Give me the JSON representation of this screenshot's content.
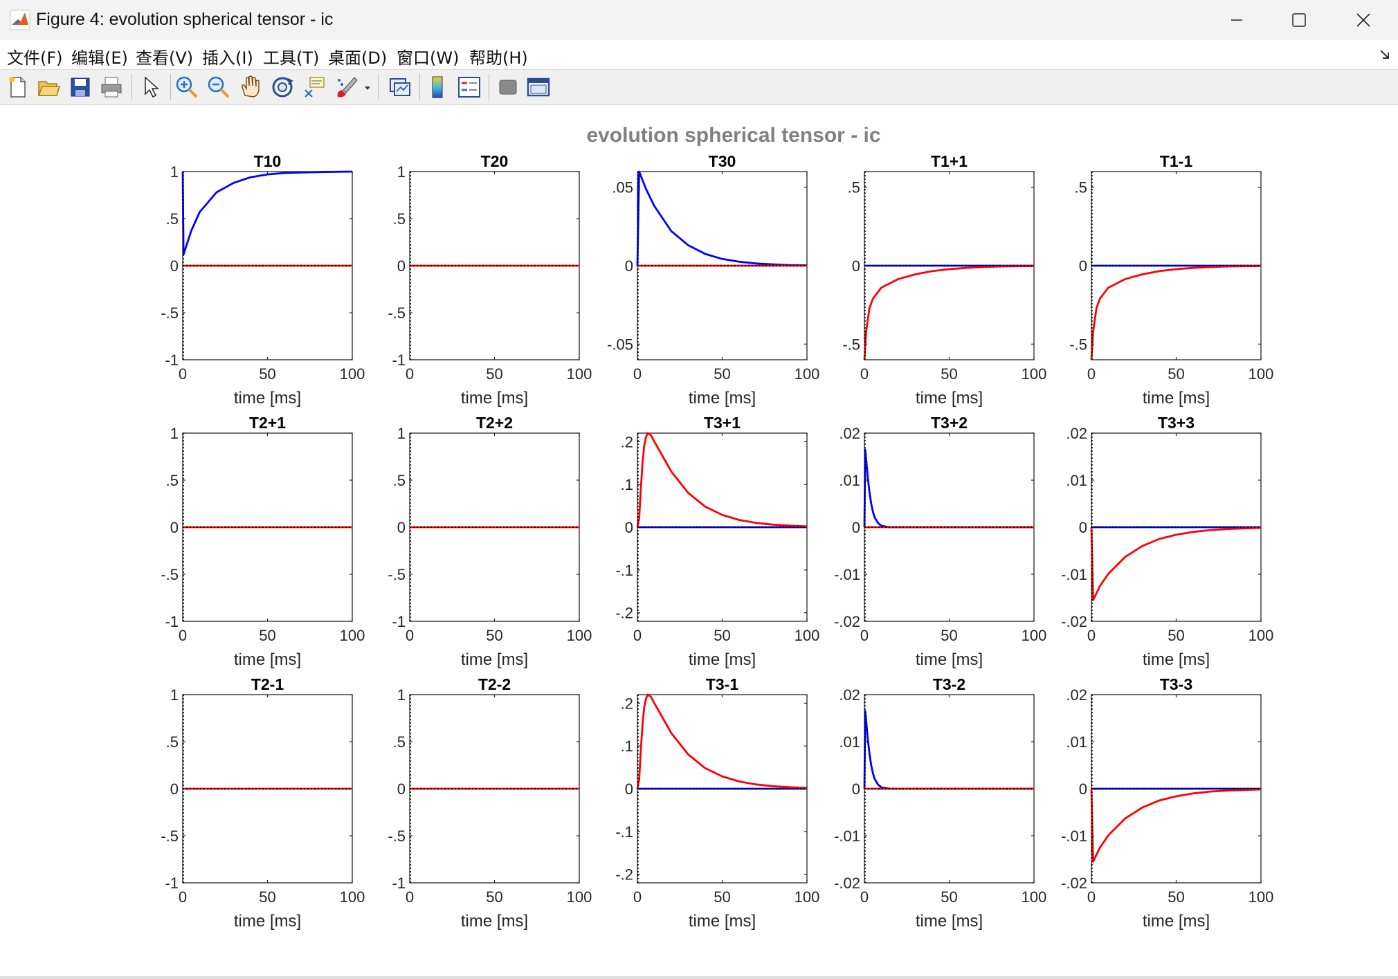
{
  "window": {
    "title": "Figure 4: evolution spherical tensor - ic"
  },
  "menu": [
    "文件(F)",
    "编辑(E)",
    "查看(V)",
    "插入(I)",
    "工具(T)",
    "桌面(D)",
    "窗口(W)",
    "帮助(H)"
  ],
  "toolbar": [
    "new-figure-icon",
    "open-file-icon",
    "save-icon",
    "print-icon",
    "select-arrow-icon",
    "zoom-in-icon",
    "zoom-out-icon",
    "pan-hand-icon",
    "rotate-3d-icon",
    "data-cursor-icon",
    "brush-icon",
    "brush-dropdown-icon",
    "link-plot-icon",
    "colorbar-icon",
    "legend-icon",
    "hide-plot-tools-icon",
    "show-plot-tools-icon"
  ],
  "colors": {
    "blue": "#0000ff",
    "red": "#ff0000",
    "black": "#000000",
    "supertitle": "#808080"
  },
  "chart_data": {
    "type": "line",
    "title": "evolution spherical tensor - ic",
    "layout": "3x5 subplots",
    "xlabel": "time [ms]",
    "xlim": [
      0,
      100
    ],
    "xticks": [
      0,
      50,
      100
    ],
    "note_lines": "blue solid, red solid, black dotted baseline",
    "subplots": [
      {
        "title": "T10",
        "ylim": [
          -1,
          1
        ],
        "yticks": [
          -1,
          -0.5,
          0,
          0.5,
          1
        ],
        "series": [
          {
            "color": "blue",
            "x": [
              0,
              0.5,
              5,
              10,
              20,
              30,
              40,
              50,
              60,
              70,
              80,
              90,
              100
            ],
            "y": [
              1,
              0.12,
              0.37,
              0.57,
              0.78,
              0.88,
              0.94,
              0.97,
              0.985,
              0.99,
              0.995,
              0.998,
              1.0
            ]
          },
          {
            "color": "red",
            "x": [
              0,
              100
            ],
            "y": [
              0,
              0
            ]
          },
          {
            "color": "black",
            "dotted": true,
            "x": [
              0,
              100
            ],
            "y": [
              0,
              0
            ]
          }
        ]
      },
      {
        "title": "T20",
        "ylim": [
          -1,
          1
        ],
        "yticks": [
          -1,
          -0.5,
          0,
          0.5,
          1
        ],
        "series": [
          {
            "color": "red",
            "x": [
              0,
              100
            ],
            "y": [
              0,
              0
            ]
          },
          {
            "color": "black",
            "dotted": true,
            "x": [
              0,
              100
            ],
            "y": [
              0,
              0
            ]
          }
        ]
      },
      {
        "title": "T30",
        "ylim": [
          -0.06,
          0.06
        ],
        "yticks": [
          -0.05,
          0,
          0.05
        ],
        "series": [
          {
            "color": "blue",
            "x": [
              0,
              1,
              5,
              10,
              20,
              30,
              40,
              50,
              60,
              70,
              80,
              90,
              100
            ],
            "y": [
              0,
              0.06,
              0.049,
              0.038,
              0.022,
              0.013,
              0.0075,
              0.0043,
              0.0025,
              0.0014,
              0.0008,
              0.0004,
              0.0002
            ]
          },
          {
            "color": "red",
            "x": [
              0,
              100
            ],
            "y": [
              0,
              0
            ]
          },
          {
            "color": "black",
            "dotted": true,
            "x": [
              0,
              100
            ],
            "y": [
              0,
              0
            ]
          }
        ]
      },
      {
        "title": "T1+1",
        "ylim": [
          -0.6,
          0.6
        ],
        "yticks": [
          -0.5,
          0,
          0.5
        ],
        "series": [
          {
            "color": "blue",
            "x": [
              0,
              100
            ],
            "y": [
              0,
              0
            ]
          },
          {
            "color": "red",
            "x": [
              0,
              1,
              3,
              5,
              10,
              20,
              30,
              40,
              50,
              60,
              70,
              80,
              90,
              100
            ],
            "y": [
              -0.6,
              -0.42,
              -0.27,
              -0.21,
              -0.14,
              -0.085,
              -0.055,
              -0.035,
              -0.022,
              -0.014,
              -0.009,
              -0.005,
              -0.003,
              -0.002
            ]
          },
          {
            "color": "black",
            "dotted": true,
            "x": [
              0,
              100
            ],
            "y": [
              0,
              0
            ]
          }
        ]
      },
      {
        "title": "T1-1",
        "ylim": [
          -0.6,
          0.6
        ],
        "yticks": [
          -0.5,
          0,
          0.5
        ],
        "series": [
          {
            "color": "blue",
            "x": [
              0,
              100
            ],
            "y": [
              0,
              0
            ]
          },
          {
            "color": "red",
            "x": [
              0,
              1,
              3,
              5,
              10,
              20,
              30,
              40,
              50,
              60,
              70,
              80,
              90,
              100
            ],
            "y": [
              -0.6,
              -0.42,
              -0.27,
              -0.21,
              -0.14,
              -0.085,
              -0.055,
              -0.035,
              -0.022,
              -0.014,
              -0.009,
              -0.005,
              -0.003,
              -0.002
            ]
          },
          {
            "color": "black",
            "dotted": true,
            "x": [
              0,
              100
            ],
            "y": [
              0,
              0
            ]
          }
        ]
      },
      {
        "title": "T2+1",
        "ylim": [
          -1,
          1
        ],
        "yticks": [
          -1,
          -0.5,
          0,
          0.5,
          1
        ],
        "series": [
          {
            "color": "red",
            "x": [
              0,
              100
            ],
            "y": [
              0,
              0
            ]
          },
          {
            "color": "black",
            "dotted": true,
            "x": [
              0,
              100
            ],
            "y": [
              0,
              0
            ]
          }
        ]
      },
      {
        "title": "T2+2",
        "ylim": [
          -1,
          1
        ],
        "yticks": [
          -1,
          -0.5,
          0,
          0.5,
          1
        ],
        "series": [
          {
            "color": "red",
            "x": [
              0,
              100
            ],
            "y": [
              0,
              0
            ]
          },
          {
            "color": "black",
            "dotted": true,
            "x": [
              0,
              100
            ],
            "y": [
              0,
              0
            ]
          }
        ]
      },
      {
        "title": "T3+1",
        "ylim": [
          -0.22,
          0.22
        ],
        "yticks": [
          -0.2,
          -0.1,
          0,
          0.1,
          0.2
        ],
        "series": [
          {
            "color": "blue",
            "x": [
              0,
              100
            ],
            "y": [
              0,
              0
            ]
          },
          {
            "color": "red",
            "x": [
              0,
              1,
              2,
              3,
              4,
              5,
              6,
              8,
              10,
              15,
              20,
              30,
              40,
              50,
              60,
              70,
              80,
              90,
              100
            ],
            "y": [
              0,
              0.02,
              0.09,
              0.15,
              0.19,
              0.21,
              0.22,
              0.215,
              0.2,
              0.165,
              0.13,
              0.08,
              0.048,
              0.029,
              0.017,
              0.01,
              0.006,
              0.0035,
              0.002
            ]
          },
          {
            "color": "black",
            "dotted": true,
            "x": [
              0,
              100
            ],
            "y": [
              0,
              0
            ]
          }
        ]
      },
      {
        "title": "T3+2",
        "ylim": [
          -0.02,
          0.02
        ],
        "yticks": [
          -0.02,
          -0.01,
          0,
          0.01,
          0.02
        ],
        "series": [
          {
            "color": "blue",
            "x": [
              0,
              0.5,
              1,
              2,
              3,
              4,
              5,
              6,
              8,
              10,
              15,
              100
            ],
            "y": [
              0,
              0.0165,
              0.0145,
              0.0105,
              0.0075,
              0.005,
              0.0033,
              0.0021,
              0.0009,
              0.0003,
              0,
              0
            ]
          },
          {
            "color": "red",
            "x": [
              0,
              100
            ],
            "y": [
              0,
              0
            ]
          },
          {
            "color": "black",
            "dotted": true,
            "x": [
              0,
              100
            ],
            "y": [
              0,
              0
            ]
          }
        ]
      },
      {
        "title": "T3+3",
        "ylim": [
          -0.02,
          0.02
        ],
        "yticks": [
          -0.02,
          -0.01,
          0,
          0.01,
          0.02
        ],
        "series": [
          {
            "color": "blue",
            "x": [
              0,
              100
            ],
            "y": [
              0,
              0
            ]
          },
          {
            "color": "red",
            "x": [
              0,
              1,
              5,
              10,
              20,
              30,
              40,
              50,
              60,
              70,
              80,
              90,
              100
            ],
            "y": [
              0,
              -0.0155,
              -0.0125,
              -0.0099,
              -0.0063,
              -0.004,
              -0.0025,
              -0.0016,
              -0.001,
              -0.0006,
              -0.0004,
              -0.00025,
              -0.00015
            ]
          },
          {
            "color": "black",
            "dotted": true,
            "x": [
              0,
              100
            ],
            "y": [
              0,
              0
            ]
          }
        ]
      },
      {
        "title": "T2-1",
        "ylim": [
          -1,
          1
        ],
        "yticks": [
          -1,
          -0.5,
          0,
          0.5,
          1
        ],
        "series": [
          {
            "color": "red",
            "x": [
              0,
              100
            ],
            "y": [
              0,
              0
            ]
          },
          {
            "color": "black",
            "dotted": true,
            "x": [
              0,
              100
            ],
            "y": [
              0,
              0
            ]
          }
        ]
      },
      {
        "title": "T2-2",
        "ylim": [
          -1,
          1
        ],
        "yticks": [
          -1,
          -0.5,
          0,
          0.5,
          1
        ],
        "series": [
          {
            "color": "red",
            "x": [
              0,
              100
            ],
            "y": [
              0,
              0
            ]
          },
          {
            "color": "black",
            "dotted": true,
            "x": [
              0,
              100
            ],
            "y": [
              0,
              0
            ]
          }
        ]
      },
      {
        "title": "T3-1",
        "ylim": [
          -0.22,
          0.22
        ],
        "yticks": [
          -0.2,
          -0.1,
          0,
          0.1,
          0.2
        ],
        "series": [
          {
            "color": "blue",
            "x": [
              0,
              100
            ],
            "y": [
              0,
              0
            ]
          },
          {
            "color": "red",
            "x": [
              0,
              1,
              2,
              3,
              4,
              5,
              6,
              8,
              10,
              15,
              20,
              30,
              40,
              50,
              60,
              70,
              80,
              90,
              100
            ],
            "y": [
              0,
              0.02,
              0.09,
              0.15,
              0.19,
              0.21,
              0.22,
              0.215,
              0.2,
              0.165,
              0.13,
              0.08,
              0.048,
              0.029,
              0.017,
              0.01,
              0.006,
              0.0035,
              0.002
            ]
          },
          {
            "color": "black",
            "dotted": true,
            "x": [
              0,
              100
            ],
            "y": [
              0,
              0
            ]
          }
        ]
      },
      {
        "title": "T3-2",
        "ylim": [
          -0.02,
          0.02
        ],
        "yticks": [
          -0.02,
          -0.01,
          0,
          0.01,
          0.02
        ],
        "series": [
          {
            "color": "blue",
            "x": [
              0,
              0.5,
              1,
              2,
              3,
              4,
              5,
              6,
              8,
              10,
              15,
              100
            ],
            "y": [
              0,
              0.0165,
              0.0145,
              0.0105,
              0.0075,
              0.005,
              0.0033,
              0.0021,
              0.0009,
              0.0003,
              0,
              0
            ]
          },
          {
            "color": "red",
            "x": [
              0,
              100
            ],
            "y": [
              0,
              0
            ]
          },
          {
            "color": "black",
            "dotted": true,
            "x": [
              0,
              100
            ],
            "y": [
              0,
              0
            ]
          }
        ]
      },
      {
        "title": "T3-3",
        "ylim": [
          -0.02,
          0.02
        ],
        "yticks": [
          -0.02,
          -0.01,
          0,
          0.01,
          0.02
        ],
        "series": [
          {
            "color": "blue",
            "x": [
              0,
              100
            ],
            "y": [
              0,
              0
            ]
          },
          {
            "color": "red",
            "x": [
              0,
              1,
              5,
              10,
              20,
              30,
              40,
              50,
              60,
              70,
              80,
              90,
              100
            ],
            "y": [
              0,
              -0.0155,
              -0.0125,
              -0.0099,
              -0.0063,
              -0.004,
              -0.0025,
              -0.0016,
              -0.001,
              -0.0006,
              -0.0004,
              -0.00025,
              -0.00015
            ]
          },
          {
            "color": "black",
            "dotted": true,
            "x": [
              0,
              100
            ],
            "y": [
              0,
              0
            ]
          }
        ]
      }
    ]
  }
}
